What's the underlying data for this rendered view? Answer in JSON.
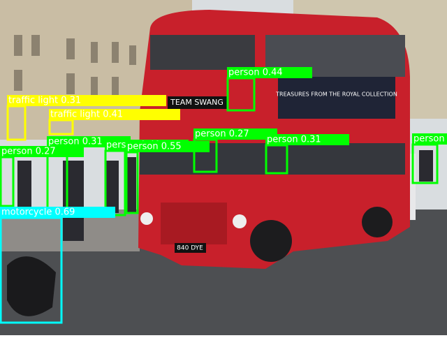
{
  "detections": [
    {
      "label": "person 0.44"
    },
    {
      "label": "traffic light 0.31"
    },
    {
      "label": "traffic light 0.41"
    },
    {
      "label": "person 0.27"
    },
    {
      "label": "person 0.31"
    },
    {
      "label": "person 0.31"
    },
    {
      "label": "person 0.40"
    },
    {
      "label": "person 0.55"
    },
    {
      "label": "person 0.27"
    },
    {
      "label": "motorcycle 0.69"
    },
    {
      "label": "person"
    }
  ],
  "bus": {
    "front_sign": "TEAM SWANG",
    "ad": "TREASURES FROM THE ROYAL COLLECTION",
    "plate": "840 DYE"
  }
}
